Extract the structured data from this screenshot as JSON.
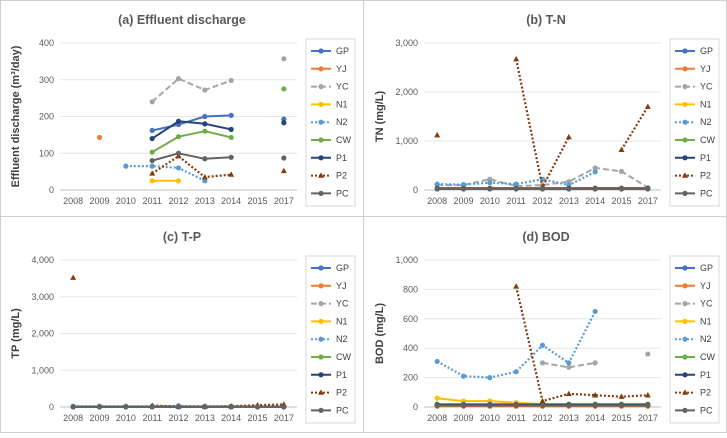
{
  "legend": [
    "GP",
    "YJ",
    "YC",
    "N1",
    "N2",
    "CW",
    "P1",
    "P2",
    "PC"
  ],
  "series_styles": {
    "GP": {
      "color": "#4472C4",
      "dash": "solid",
      "marker": "circle"
    },
    "YJ": {
      "color": "#ED7D31",
      "dash": "solid",
      "marker": "circle"
    },
    "YC": {
      "color": "#A5A5A5",
      "dash": "dash",
      "marker": "circle"
    },
    "N1": {
      "color": "#FFC000",
      "dash": "solid",
      "marker": "circle"
    },
    "N2": {
      "color": "#5B9BD5",
      "dash": "dot",
      "marker": "circle"
    },
    "CW": {
      "color": "#70AD47",
      "dash": "solid",
      "marker": "circle"
    },
    "P1": {
      "color": "#264478",
      "dash": "solid",
      "marker": "circle"
    },
    "P2": {
      "color": "#843C0C",
      "dash": "dot",
      "marker": "triangle"
    },
    "PC": {
      "color": "#636363",
      "dash": "solid",
      "marker": "circle"
    }
  },
  "chart_data": [
    {
      "type": "line",
      "title": "(a) Effluent discharge",
      "ylabel": "Effluent discharge (m³/day)",
      "xlabel": "",
      "categories": [
        "2008",
        "2009",
        "2010",
        "2011",
        "2012",
        "2013",
        "2014",
        "2015",
        "2017"
      ],
      "ylim": [
        0,
        400
      ],
      "yticks": [
        "0",
        "100",
        "200",
        "300",
        "400"
      ],
      "series": [
        {
          "name": "GP",
          "values": [
            null,
            null,
            null,
            162,
            178,
            200,
            203,
            null,
            193
          ]
        },
        {
          "name": "YJ",
          "values": [
            null,
            143,
            null,
            null,
            null,
            null,
            null,
            null,
            null
          ]
        },
        {
          "name": "YC",
          "values": [
            null,
            null,
            null,
            240,
            303,
            272,
            298,
            null,
            357
          ]
        },
        {
          "name": "N1",
          "values": [
            null,
            null,
            null,
            25,
            25,
            null,
            null,
            null,
            null
          ]
        },
        {
          "name": "N2",
          "values": [
            null,
            null,
            65,
            65,
            60,
            25,
            null,
            null,
            null
          ]
        },
        {
          "name": "CW",
          "values": [
            null,
            null,
            null,
            103,
            145,
            160,
            143,
            null,
            275
          ]
        },
        {
          "name": "P1",
          "values": [
            null,
            null,
            null,
            140,
            187,
            180,
            165,
            null,
            183
          ]
        },
        {
          "name": "P2",
          "values": [
            null,
            null,
            null,
            45,
            92,
            35,
            42,
            null,
            52
          ]
        },
        {
          "name": "PC",
          "values": [
            null,
            null,
            null,
            80,
            100,
            85,
            89,
            null,
            87
          ]
        }
      ]
    },
    {
      "type": "line",
      "title": "(b) T-N",
      "ylabel": "TN (mg/L)",
      "xlabel": "",
      "categories": [
        "2008",
        "2009",
        "2010",
        "2011",
        "2012",
        "2013",
        "2014",
        "2015",
        "2017"
      ],
      "ylim": [
        0,
        3000
      ],
      "yticks": [
        "0",
        "1,000",
        "2,000",
        "3,000"
      ],
      "series": [
        {
          "name": "GP",
          "values": [
            30,
            30,
            30,
            30,
            30,
            30,
            30,
            30,
            30
          ]
        },
        {
          "name": "YJ",
          "values": [
            40,
            40,
            40,
            40,
            40,
            40,
            40,
            40,
            40
          ]
        },
        {
          "name": "YC",
          "values": [
            100,
            100,
            220,
            80,
            100,
            170,
            450,
            380,
            50
          ]
        },
        {
          "name": "N1",
          "values": [
            30,
            30,
            30,
            30,
            30,
            30,
            30,
            30,
            30
          ]
        },
        {
          "name": "N2",
          "values": [
            120,
            110,
            150,
            120,
            220,
            100,
            370,
            null,
            null
          ]
        },
        {
          "name": "CW",
          "values": [
            30,
            30,
            30,
            30,
            30,
            30,
            30,
            30,
            30
          ]
        },
        {
          "name": "P1",
          "values": [
            30,
            30,
            30,
            30,
            30,
            30,
            30,
            30,
            30
          ]
        },
        {
          "name": "P2",
          "values": [
            1120,
            null,
            null,
            2670,
            60,
            1080,
            null,
            820,
            1700
          ]
        },
        {
          "name": "PC",
          "values": [
            20,
            20,
            20,
            20,
            20,
            20,
            20,
            20,
            20
          ]
        }
      ]
    },
    {
      "type": "line",
      "title": "(c) T-P",
      "ylabel": "TP (mg/L)",
      "xlabel": "",
      "categories": [
        "2008",
        "2009",
        "2010",
        "2011",
        "2012",
        "2013",
        "2014",
        "2015",
        "2017"
      ],
      "ylim": [
        0,
        4000
      ],
      "yticks": [
        "0",
        "1,000",
        "2,000",
        "3,000",
        "4,000"
      ],
      "series": [
        {
          "name": "GP",
          "values": [
            5,
            5,
            5,
            5,
            5,
            5,
            5,
            5,
            5
          ]
        },
        {
          "name": "YJ",
          "values": [
            5,
            5,
            5,
            5,
            5,
            5,
            5,
            5,
            5
          ]
        },
        {
          "name": "YC",
          "values": [
            10,
            10,
            10,
            10,
            10,
            10,
            10,
            10,
            10
          ]
        },
        {
          "name": "N1",
          "values": [
            5,
            5,
            5,
            5,
            5,
            5,
            5,
            5,
            5
          ]
        },
        {
          "name": "N2",
          "values": [
            20,
            20,
            20,
            20,
            30,
            20,
            20,
            null,
            null
          ]
        },
        {
          "name": "CW",
          "values": [
            5,
            5,
            5,
            5,
            5,
            5,
            5,
            5,
            5
          ]
        },
        {
          "name": "P1",
          "values": [
            5,
            5,
            5,
            5,
            5,
            5,
            5,
            5,
            5
          ]
        },
        {
          "name": "P2",
          "values": [
            3520,
            null,
            null,
            40,
            10,
            10,
            20,
            50,
            70
          ]
        },
        {
          "name": "PC",
          "values": [
            5,
            5,
            5,
            5,
            5,
            5,
            5,
            5,
            5
          ]
        }
      ]
    },
    {
      "type": "line",
      "title": "(d) BOD",
      "ylabel": "BOD (mg/L)",
      "xlabel": "",
      "categories": [
        "2008",
        "2009",
        "2010",
        "2011",
        "2012",
        "2013",
        "2014",
        "2015",
        "2017"
      ],
      "ylim": [
        0,
        1000
      ],
      "yticks": [
        "0",
        "200",
        "400",
        "600",
        "800",
        "1,000"
      ],
      "series": [
        {
          "name": "GP",
          "values": [
            10,
            10,
            10,
            10,
            10,
            10,
            10,
            10,
            10
          ]
        },
        {
          "name": "YJ",
          "values": [
            5,
            5,
            5,
            5,
            5,
            5,
            5,
            5,
            5
          ]
        },
        {
          "name": "YC",
          "values": [
            null,
            null,
            null,
            null,
            300,
            270,
            300,
            null,
            360
          ]
        },
        {
          "name": "N1",
          "values": [
            60,
            40,
            40,
            30,
            20,
            null,
            null,
            null,
            null
          ]
        },
        {
          "name": "N2",
          "values": [
            310,
            210,
            200,
            240,
            420,
            300,
            650,
            null,
            null
          ]
        },
        {
          "name": "CW",
          "values": [
            20,
            20,
            20,
            20,
            20,
            20,
            20,
            20,
            20
          ]
        },
        {
          "name": "P1",
          "values": [
            15,
            15,
            15,
            15,
            15,
            15,
            15,
            15,
            15
          ]
        },
        {
          "name": "P2",
          "values": [
            null,
            null,
            null,
            820,
            40,
            90,
            80,
            70,
            80
          ]
        },
        {
          "name": "PC",
          "values": [
            10,
            10,
            10,
            10,
            10,
            10,
            10,
            10,
            10
          ]
        }
      ]
    }
  ]
}
